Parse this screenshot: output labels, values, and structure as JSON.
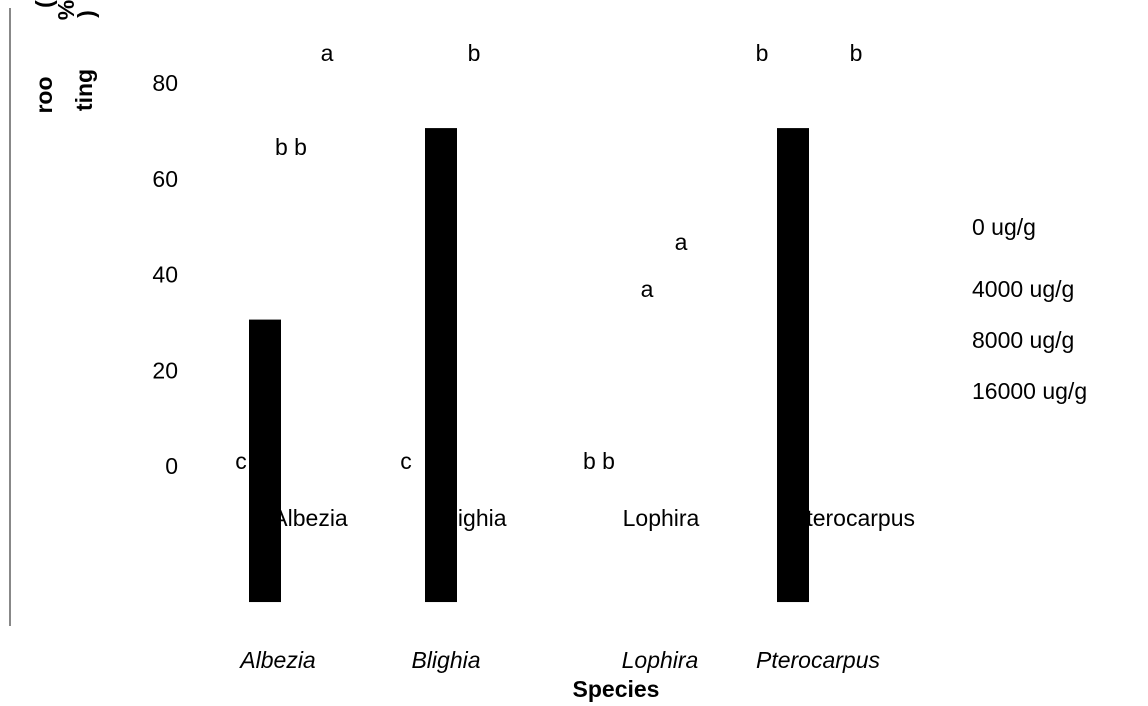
{
  "chart_data": {
    "type": "bar",
    "y_label": [
      "roo",
      "ting"
    ],
    "y_label_fragments": [
      "(",
      "%",
      ")"
    ],
    "x_label": "Species",
    "categories": [
      "Albezia",
      "Blighia",
      "Lophira",
      "Pterocarpus"
    ],
    "inner_labels": [
      "Albezia",
      "Blighia",
      "Lophira",
      "Pterocarpus"
    ],
    "values": [
      31,
      71,
      null,
      71
    ],
    "color": "#000000",
    "ylim": [
      -28,
      80
    ],
    "yticks": [
      0,
      20,
      40,
      60,
      80
    ],
    "legend": [
      "0 ug/g",
      "4000 ug/g",
      "8000 ug/g",
      "16000 ug/g"
    ],
    "annotations": [
      "a",
      "b",
      "b",
      "b",
      "b b",
      "a",
      "a",
      "c",
      "c",
      "b b"
    ]
  }
}
